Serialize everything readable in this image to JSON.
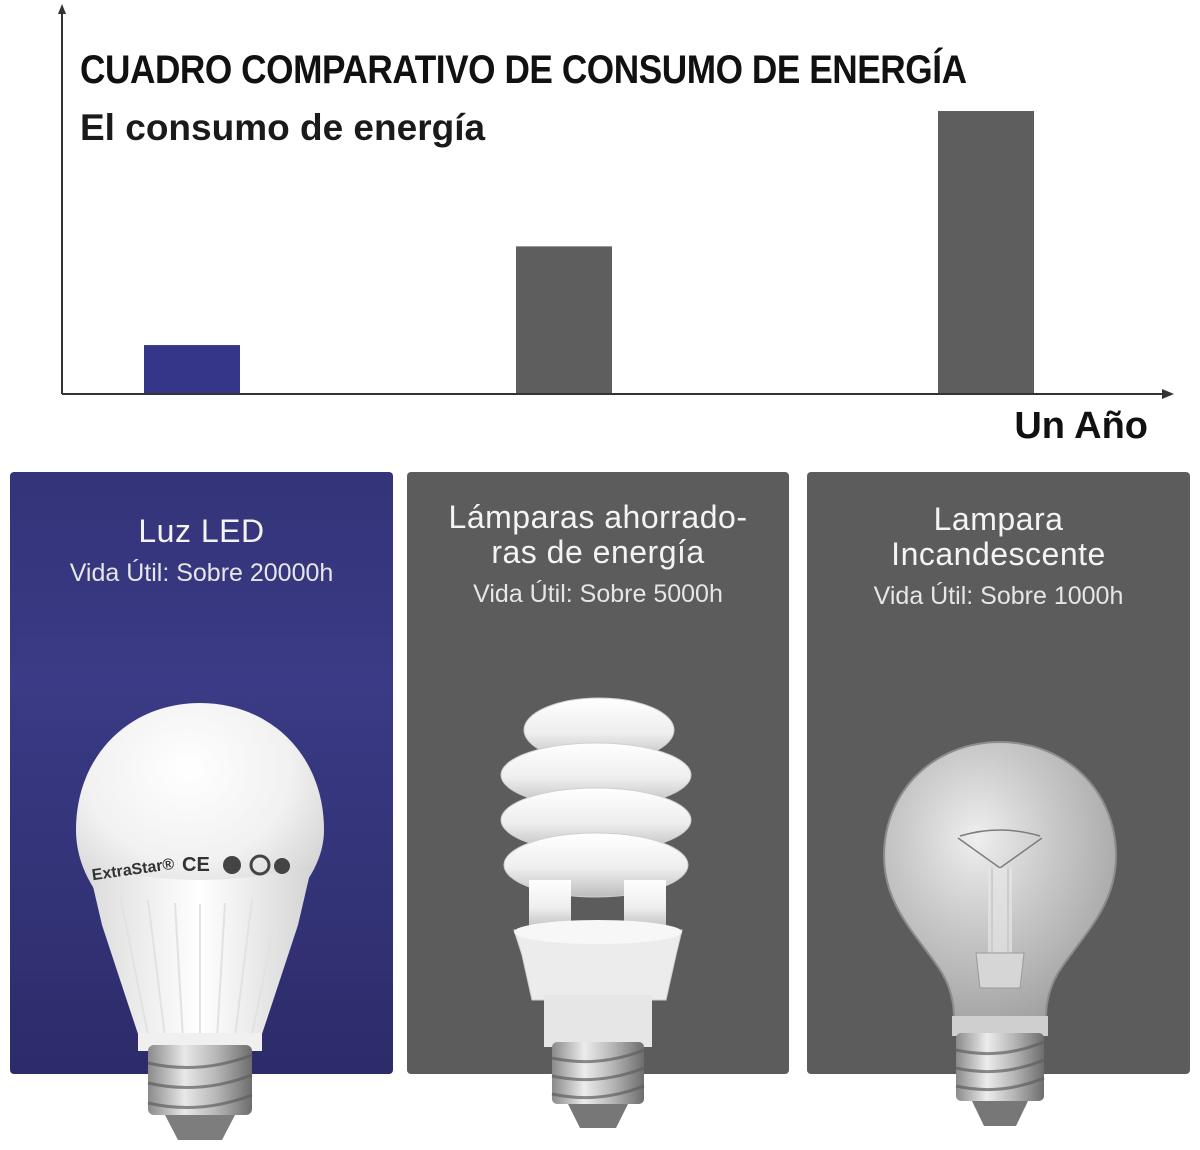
{
  "chart": {
    "title": "CUADRO COMPARATIVO DE CONSUMO DE ENERGÍA",
    "subtitle": "El consumo de energía",
    "x_label": "Un Año"
  },
  "chart_data": {
    "type": "bar",
    "title": "CUADRO COMPARATIVO DE CONSUMO DE ENERGÍA",
    "subtitle": "El consumo de energía",
    "xlabel": "Un Año",
    "ylabel": "El consumo de energía",
    "categories": [
      "Luz LED",
      "Lámparas ahorradoras de energía",
      "Lampara Incandescente"
    ],
    "values": [
      17,
      52,
      100
    ],
    "value_unit": "relative (% of incandescent)",
    "colors": [
      "#35368a",
      "#5e5e5e",
      "#5e5e5e"
    ],
    "ylim": [
      0,
      100
    ],
    "grid": false,
    "legend": "none"
  },
  "panels": [
    {
      "name": "Luz LED",
      "life": "Vida Útil: Sobre 20000h",
      "bulb_icon": "led-bulb-icon",
      "brand": "ExtraStar"
    },
    {
      "name": "Lámparas ahorrado-\nras de energía",
      "life": "Vida Útil: Sobre 5000h",
      "bulb_icon": "cfl-spiral-bulb-icon"
    },
    {
      "name": "Lampara\nIncandescente",
      "life": "Vida Útil: Sobre 1000h",
      "bulb_icon": "incandescent-bulb-icon"
    }
  ]
}
